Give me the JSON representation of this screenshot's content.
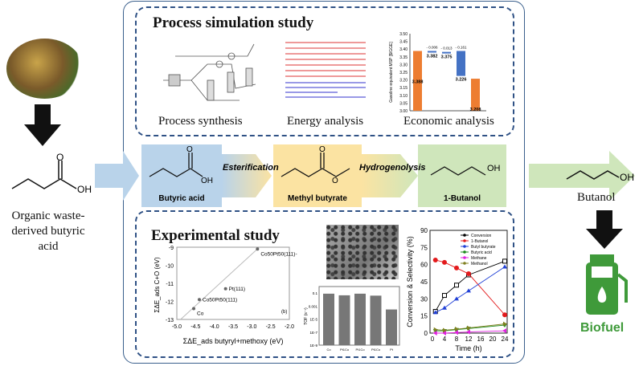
{
  "feedstock": {
    "caption": "Organic waste-derived butyric acid"
  },
  "product": {
    "label": "Butanol",
    "fuel_label": "Biofuel",
    "fuel_color": "#3f9a3a"
  },
  "process": {
    "title": "Process simulation study",
    "captions": [
      "Process  synthesis",
      "Energy analysis",
      "Economic analysis"
    ]
  },
  "pathway": {
    "steps": [
      "Butyric acid",
      "Methyl butyrate",
      "1-Butanol"
    ],
    "reactions": [
      "Esterification",
      "Hydrogenolysis"
    ],
    "colors": [
      "#b9d3ea",
      "#fbe3a2",
      "#cfe6bb"
    ],
    "oh_label": "OH"
  },
  "experimental": {
    "title": "Experimental study"
  },
  "chart_data": [
    {
      "type": "bar",
      "title": "",
      "ylabel": "Gasoline equivalent MSP [$/GGE]",
      "ylim": [
        3.0,
        3.5
      ],
      "yticks": [
        "3.50",
        "3.45",
        "3.40",
        "3.35",
        "3.30",
        "3.25",
        "3.20",
        "3.15",
        "3.10",
        "3.05",
        "3.00"
      ],
      "bars": [
        {
          "value": 3.388,
          "label": "3.388",
          "kind": "total"
        },
        {
          "from": 3.388,
          "to": 3.382,
          "label": "3.382",
          "delta": "- 0.006",
          "kind": "delta"
        },
        {
          "from": 3.382,
          "to": 3.375,
          "label": "3.375",
          "delta": "- 0.013",
          "kind": "delta"
        },
        {
          "from": 3.388,
          "to": 3.226,
          "label": "3.226",
          "delta": "- 0.161",
          "kind": "delta"
        },
        {
          "value": 3.208,
          "label": "3.208",
          "kind": "total"
        }
      ],
      "colors": {
        "total": "#ed7d31",
        "delta": "#4472c4"
      }
    },
    {
      "type": "scatter",
      "xlabel": "ΣΔE_ads butyryl+methoxy (eV)",
      "ylabel": "ΣΔE_ads C+O (eV)",
      "xlim": [
        -5.0,
        -2.0
      ],
      "ylim": [
        -13,
        -9
      ],
      "xticks": [
        "-5.0",
        "-4.5",
        "-4.0",
        "-3.5",
        "-3.0",
        "-2.5",
        "-2.0"
      ],
      "yticks": [
        "-9",
        "-10",
        "-11",
        "-12",
        "-13"
      ],
      "panel": "(b)",
      "points": [
        {
          "x": -4.55,
          "y": -12.4,
          "label": "Co"
        },
        {
          "x": -4.4,
          "y": -11.9,
          "label": "Co50Pt50(111)"
        },
        {
          "x": -3.7,
          "y": -11.3,
          "label": "Pt(111)"
        },
        {
          "x": -2.85,
          "y": -9.1,
          "label": "Co50Pt50(111)-Pt"
        }
      ]
    },
    {
      "type": "bar",
      "ylabel": "TOF (s⁻¹)",
      "yscale": "log",
      "ylim": [
        1e-09,
        1
      ],
      "yticks": [
        "0.1",
        "0.001",
        "1E-5",
        "1E-7",
        "1E-9"
      ],
      "categories": [
        "Co",
        "Pt1Co",
        "Pt1Co",
        "Pt1Co",
        "Pt"
      ],
      "values": [
        0.08,
        0.045,
        0.08,
        0.04,
        0.0003
      ]
    },
    {
      "type": "line",
      "xlabel": "Time (h)",
      "ylabel": "Conversion & Selectivity (%)",
      "xlim": [
        0,
        24
      ],
      "ylim": [
        0,
        90
      ],
      "xticks": [
        "0",
        "4",
        "8",
        "12",
        "16",
        "20",
        "24"
      ],
      "yticks": [
        "0",
        "15",
        "30",
        "45",
        "60",
        "75",
        "90"
      ],
      "x": [
        1,
        4,
        8,
        12,
        24
      ],
      "series": [
        {
          "name": "Conversion",
          "color": "#000000",
          "marker": "square-open",
          "values": [
            19,
            33,
            42,
            51,
            63
          ]
        },
        {
          "name": "1-Butanol",
          "color": "#e31a1c",
          "marker": "circle",
          "values": [
            64,
            62,
            57,
            52,
            16
          ]
        },
        {
          "name": "Butyl butyrate",
          "color": "#1f3fd6",
          "marker": "triangle-up",
          "values": [
            18,
            22,
            30,
            37,
            58
          ]
        },
        {
          "name": "Butyric acid",
          "color": "#1a8a1a",
          "marker": "triangle-down",
          "values": [
            2,
            2,
            3,
            4,
            7
          ]
        },
        {
          "name": "Methane",
          "color": "#e020e0",
          "marker": "triangle-left",
          "values": [
            0,
            0,
            0.5,
            1,
            2
          ]
        },
        {
          "name": "Methanol",
          "color": "#808020",
          "marker": "triangle-right",
          "values": [
            3,
            2.5,
            3.5,
            4.5,
            8
          ]
        }
      ]
    }
  ]
}
